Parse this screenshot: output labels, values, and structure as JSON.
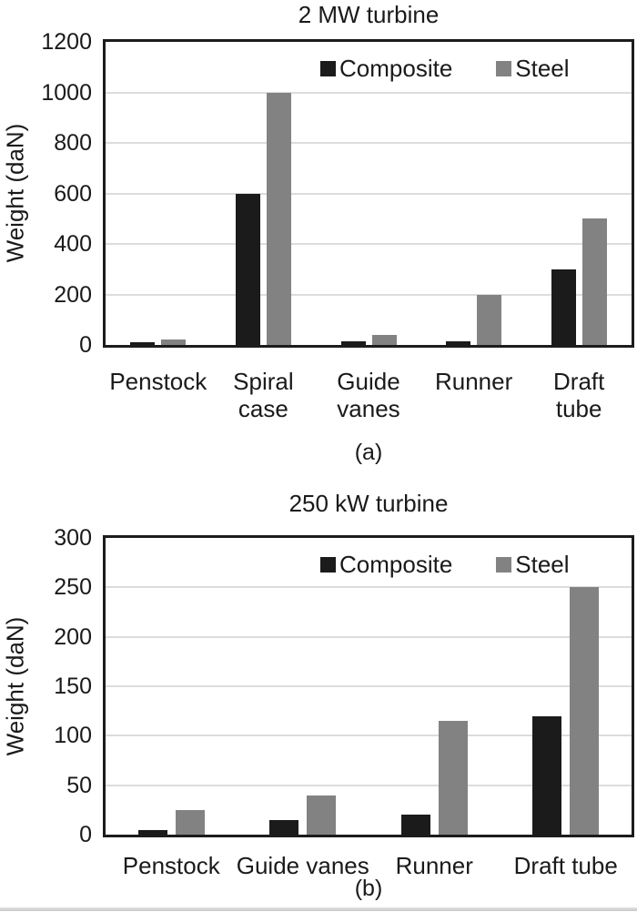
{
  "figure_captions": {
    "a": "(a)",
    "b": "(b)"
  },
  "chart_data": [
    {
      "type": "bar",
      "title": "2 MW turbine",
      "caption": "(a)",
      "xlabel": "",
      "ylabel": "Weight (daN)",
      "ylim": [
        0,
        1200
      ],
      "ytick_step": 200,
      "grid": true,
      "legend_position": "top-right-inside",
      "categories": [
        "Penstock",
        "Spiral case",
        "Guide vanes",
        "Runner",
        "Draft tube"
      ],
      "category_label_lines": [
        [
          "Penstock"
        ],
        [
          "Spiral",
          "case"
        ],
        [
          "Guide",
          "vanes"
        ],
        [
          "Runner"
        ],
        [
          "Draft",
          "tube"
        ]
      ],
      "series": [
        {
          "name": "Composite",
          "color": "#1b1b1b",
          "values": [
            10,
            600,
            15,
            15,
            300
          ]
        },
        {
          "name": "Steel",
          "color": "#828282",
          "values": [
            20,
            1000,
            40,
            200,
            500
          ]
        }
      ]
    },
    {
      "type": "bar",
      "title": "250 kW turbine",
      "caption": "(b)",
      "xlabel": "",
      "ylabel": "Weight (daN)",
      "ylim": [
        0,
        300
      ],
      "ytick_step": 50,
      "grid": true,
      "legend_position": "top-right-inside",
      "categories": [
        "Penstock",
        "Guide vanes",
        "Runner",
        "Draft tube"
      ],
      "category_label_lines": [
        [
          "Penstock"
        ],
        [
          "Guide vanes"
        ],
        [
          "Runner"
        ],
        [
          "Draft tube"
        ]
      ],
      "series": [
        {
          "name": "Composite",
          "color": "#1b1b1b",
          "values": [
            5,
            15,
            20,
            120
          ]
        },
        {
          "name": "Steel",
          "color": "#828282",
          "values": [
            25,
            40,
            115,
            250
          ]
        }
      ]
    }
  ]
}
